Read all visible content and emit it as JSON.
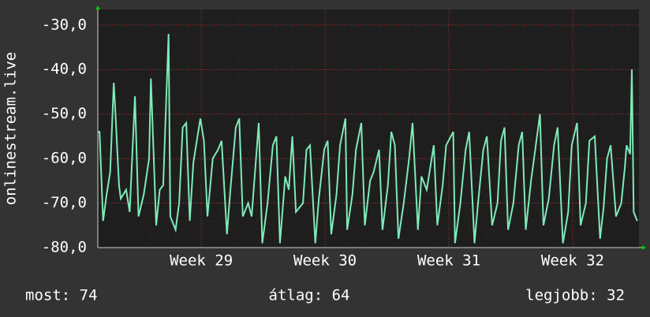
{
  "chart_data": {
    "type": "line",
    "ylabel": "onlinestream.live",
    "footer": [
      "most: 74",
      "átlag: 64",
      "legjobb: 32"
    ],
    "x": [
      0.0,
      0.1,
      0.3,
      0.5,
      0.7,
      0.9,
      1.0,
      1.2,
      1.3,
      1.6,
      1.8,
      2.1,
      2.3,
      2.6,
      2.9,
      3.0,
      3.3,
      3.5,
      3.7,
      4.0,
      4.1,
      4.4,
      4.6,
      4.8,
      5.0,
      5.2,
      5.4,
      5.6,
      5.8,
      6.0,
      6.2,
      6.5,
      6.8,
      7.0,
      7.3,
      7.5,
      7.8,
      8.0,
      8.2,
      8.5,
      8.7,
      9.1,
      9.3,
      9.6,
      9.9,
      10.1,
      10.3,
      10.6,
      10.8,
      11.0,
      11.2,
      11.6,
      11.8,
      12.0,
      12.3,
      12.5,
      12.8,
      13.0,
      13.2,
      13.5,
      13.7,
      14.0,
      14.1,
      14.4,
      14.6,
      14.9,
      15.1,
      15.4,
      15.6,
      15.9,
      16.1,
      16.4,
      16.6,
      16.8,
      17.0,
      17.3,
      17.6,
      17.8,
      18.1,
      18.3,
      18.6,
      19.0,
      19.2,
      19.5,
      19.7,
      20.1,
      20.2,
      20.5,
      20.8,
      21.0,
      21.3,
      21.5,
      21.8,
      22.0,
      22.3,
      22.6,
      22.8,
      23.0,
      23.2,
      23.5,
      23.8,
      24.0,
      24.2,
      24.5,
      24.8,
      25.0,
      25.2,
      25.5,
      25.8,
      26.0,
      26.3,
      26.6,
      26.8,
      27.1,
      27.3,
      27.6,
      27.8,
      28.1,
      28.4,
      28.6,
      28.8,
      29.0,
      29.3,
      29.6,
      29.8,
      29.9,
      30.1,
      30.2,
      30.3,
      30.5
    ],
    "series": [
      {
        "name": "onlinestream.live",
        "color": "#7eeab9",
        "values": [
          -54,
          -54,
          -74,
          -68,
          -63,
          -43,
          -50,
          -66,
          -69,
          -67,
          -72,
          -46,
          -73,
          -68,
          -60,
          -42,
          -75,
          -67,
          -66,
          -32,
          -73,
          -76,
          -70,
          -53,
          -52,
          -74,
          -61,
          -56,
          -51,
          -56,
          -73,
          -60,
          -58,
          -56,
          -77,
          -67,
          -53,
          -51,
          -73,
          -70,
          -73,
          -52,
          -79,
          -70,
          -57,
          -55,
          -79,
          -64,
          -67,
          -55,
          -72,
          -70,
          -58,
          -57,
          -79,
          -69,
          -58,
          -56,
          -77,
          -68,
          -57,
          -51,
          -76,
          -68,
          -58,
          -52,
          -75,
          -65,
          -63,
          -58,
          -76,
          -66,
          -54,
          -57,
          -78,
          -70,
          -60,
          -52,
          -76,
          -64,
          -67,
          -57,
          -75,
          -66,
          -57,
          -54,
          -79,
          -70,
          -58,
          -54,
          -79,
          -70,
          -58,
          -55,
          -75,
          -70,
          -56,
          -53,
          -76,
          -70,
          -57,
          -54,
          -76,
          -65,
          -56,
          -50,
          -75,
          -69,
          -57,
          -53,
          -79,
          -72,
          -57,
          -52,
          -75,
          -70,
          -56,
          -55,
          -78,
          -71,
          -60,
          -57,
          -73,
          -70,
          -62,
          -57,
          -59,
          -40,
          -72,
          -74
        ]
      }
    ],
    "xlim": [
      0,
      30.6
    ],
    "xticks": [
      {
        "value": 5.85,
        "label": "Week 29"
      },
      {
        "value": 12.85,
        "label": "Week 30"
      },
      {
        "value": 19.85,
        "label": "Week 31"
      },
      {
        "value": 26.85,
        "label": "Week 32"
      }
    ],
    "ylim": [
      -80,
      -26.5
    ],
    "yticks": [
      {
        "value": -80,
        "label": "-80,0"
      },
      {
        "value": -70,
        "label": "-70,0"
      },
      {
        "value": -60,
        "label": "-60,0"
      },
      {
        "value": -50,
        "label": "-50,0"
      },
      {
        "value": -40,
        "label": "-40,0"
      },
      {
        "value": -30,
        "label": "-30,0"
      }
    ],
    "grid": true
  }
}
